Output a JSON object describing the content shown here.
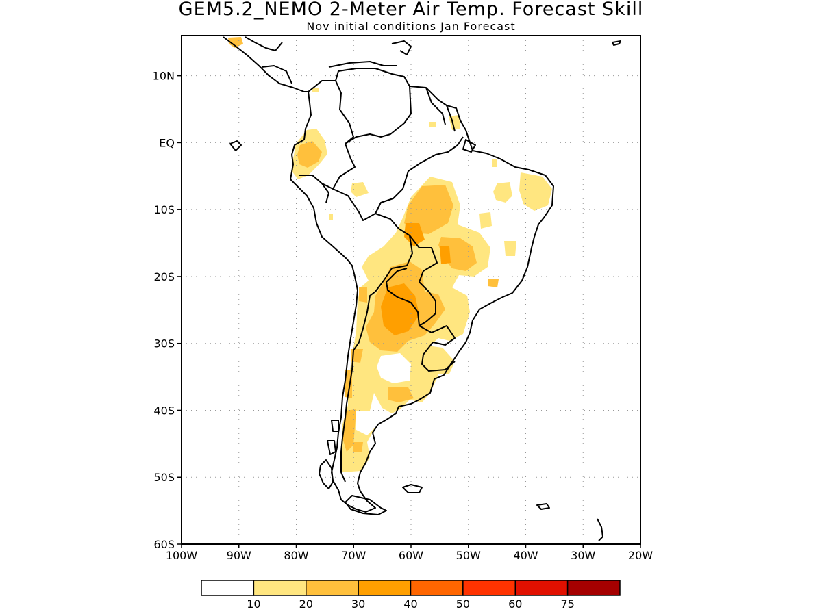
{
  "title": "GEM5.2_NEMO 2-Meter Air Temp. Forecast Skill",
  "subtitle": "Nov initial conditions  Jan Forecast",
  "map": {
    "lon_range": [
      -100,
      -20
    ],
    "lat_range": [
      -60,
      16
    ],
    "lat_ticks": [
      "10N",
      "EQ",
      "10S",
      "20S",
      "30S",
      "40S",
      "50S",
      "60S"
    ],
    "lon_ticks": [
      "100W",
      "90W",
      "80W",
      "70W",
      "60W",
      "50W",
      "40W",
      "30W",
      "20W"
    ],
    "grid": "dotted"
  },
  "colorbar": {
    "colors": [
      "#ffffff",
      "#ffe680",
      "#ffc03c",
      "#ff9f00",
      "#ff6600",
      "#ff3300",
      "#e11000",
      "#a50000"
    ],
    "labels": [
      "10",
      "20",
      "30",
      "40",
      "50",
      "60",
      "75"
    ]
  }
}
